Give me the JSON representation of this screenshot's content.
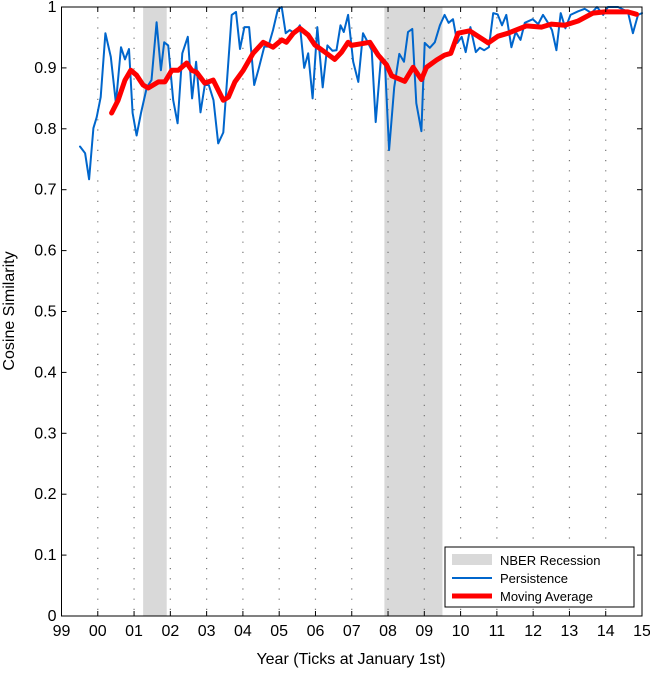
{
  "chart_data": {
    "type": "line",
    "title": "",
    "xlabel": "Year (Ticks at January 1st)",
    "ylabel": "Cosine Similarity",
    "xlim": [
      1999,
      2015
    ],
    "ylim": [
      0,
      1
    ],
    "x_ticks": [
      1999,
      2000,
      2001,
      2002,
      2003,
      2004,
      2005,
      2006,
      2007,
      2008,
      2009,
      2010,
      2011,
      2012,
      2013,
      2014,
      2015
    ],
    "x_tick_labels": [
      "99",
      "00",
      "01",
      "02",
      "03",
      "04",
      "05",
      "06",
      "07",
      "08",
      "09",
      "10",
      "11",
      "12",
      "13",
      "14",
      "15"
    ],
    "y_ticks": [
      0,
      0.1,
      0.2,
      0.3,
      0.4,
      0.5,
      0.6,
      0.7,
      0.8,
      0.9,
      1
    ],
    "y_tick_labels": [
      "0",
      "0.1",
      "0.2",
      "0.3",
      "0.4",
      "0.5",
      "0.6",
      "0.7",
      "0.8",
      "0.9",
      "1"
    ],
    "grid": "vertical dotted at year ticks",
    "legend_position": "bottom-right",
    "recessions": {
      "name": "NBER Recession",
      "color": "#d9d9d9",
      "periods": [
        [
          2001.25,
          2001.9
        ],
        [
          2007.9,
          2009.5
        ]
      ]
    },
    "series": [
      {
        "name": "Persistence",
        "color": "#0066cc",
        "x": [
          1999.51,
          1999.65,
          1999.76,
          1999.88,
          1999.97,
          2000.08,
          2000.21,
          2000.36,
          2000.5,
          2000.64,
          2000.75,
          2000.86,
          2000.96,
          2001.07,
          2001.19,
          2001.35,
          2001.48,
          2001.62,
          2001.74,
          2001.83,
          2001.94,
          2002.08,
          2002.2,
          2002.33,
          2002.48,
          2002.6,
          2002.71,
          2002.83,
          2002.95,
          2003.06,
          2003.19,
          2003.32,
          2003.46,
          2003.69,
          2003.81,
          2003.92,
          2004.04,
          2004.17,
          2004.31,
          2004.44,
          2004.59,
          2004.7,
          2004.83,
          2004.96,
          2005.07,
          2005.18,
          2005.29,
          2005.43,
          2005.57,
          2005.69,
          2005.8,
          2005.92,
          2006.05,
          2006.2,
          2006.33,
          2006.47,
          2006.58,
          2006.69,
          2006.78,
          2006.9,
          2007.04,
          2007.18,
          2007.31,
          2007.45,
          2007.55,
          2007.66,
          2007.8,
          2007.91,
          2008.03,
          2008.17,
          2008.31,
          2008.44,
          2008.55,
          2008.67,
          2008.78,
          2008.92,
          2009.01,
          2009.15,
          2009.29,
          2009.43,
          2009.56,
          2009.67,
          2009.79,
          2009.91,
          2010.03,
          2010.14,
          2010.27,
          2010.42,
          2010.53,
          2010.65,
          2010.78,
          2010.9,
          2011.02,
          2011.14,
          2011.26,
          2011.4,
          2011.52,
          2011.65,
          2011.77,
          2011.99,
          2012.14,
          2012.27,
          2012.41,
          2012.52,
          2012.64,
          2012.76,
          2012.89,
          2013.03,
          2013.24,
          2013.42,
          2013.61,
          2013.76,
          2013.93,
          2014.06,
          2014.34,
          2014.61,
          2014.75,
          2014.89,
          2015.0
        ],
        "y": [
          0.771,
          0.76,
          0.717,
          0.801,
          0.819,
          0.852,
          0.957,
          0.918,
          0.842,
          0.934,
          0.914,
          0.931,
          0.826,
          0.789,
          0.826,
          0.868,
          0.88,
          0.975,
          0.896,
          0.942,
          0.937,
          0.847,
          0.809,
          0.924,
          0.951,
          0.85,
          0.91,
          0.827,
          0.872,
          0.872,
          0.847,
          0.776,
          0.794,
          0.987,
          0.992,
          0.931,
          0.967,
          0.967,
          0.872,
          0.9,
          0.935,
          0.935,
          0.962,
          0.995,
          1.0,
          0.957,
          0.962,
          0.957,
          0.97,
          0.9,
          0.924,
          0.85,
          0.967,
          0.868,
          0.937,
          0.928,
          0.929,
          0.97,
          0.959,
          0.987,
          0.91,
          0.877,
          0.957,
          0.941,
          0.929,
          0.811,
          0.913,
          0.913,
          0.765,
          0.868,
          0.923,
          0.91,
          0.959,
          0.964,
          0.842,
          0.796,
          0.941,
          0.933,
          0.942,
          0.97,
          0.987,
          0.974,
          0.98,
          0.941,
          0.951,
          0.926,
          0.967,
          0.926,
          0.933,
          0.929,
          0.934,
          0.99,
          0.988,
          0.97,
          0.987,
          0.934,
          0.959,
          0.946,
          0.974,
          0.98,
          0.972,
          0.987,
          0.974,
          0.962,
          0.929,
          0.99,
          0.965,
          0.987,
          0.993,
          0.997,
          0.99,
          1.0,
          0.987,
          1.0,
          1.0,
          0.992,
          0.957,
          0.987,
          0.99
        ]
      },
      {
        "name": "Moving Average",
        "color": "#ff0000",
        "x": [
          2000.38,
          2000.56,
          2000.75,
          2000.91,
          2001.07,
          2001.25,
          2001.39,
          2001.67,
          2001.85,
          2002.04,
          2002.22,
          2002.45,
          2002.59,
          2002.72,
          2002.95,
          2003.18,
          2003.46,
          2003.6,
          2003.78,
          2004.01,
          2004.28,
          2004.56,
          2004.83,
          2005.07,
          2005.2,
          2005.39,
          2005.57,
          2005.8,
          2005.98,
          2006.26,
          2006.53,
          2006.72,
          2006.9,
          2006.99,
          2007.5,
          2007.73,
          2007.96,
          2008.1,
          2008.46,
          2008.69,
          2008.92,
          2009.06,
          2009.34,
          2009.56,
          2009.73,
          2009.93,
          2010.25,
          2010.76,
          2011.03,
          2011.31,
          2011.81,
          2012.23,
          2012.5,
          2012.87,
          2013.24,
          2013.65,
          2013.97,
          2014.61,
          2014.85
        ],
        "y": [
          0.826,
          0.847,
          0.88,
          0.896,
          0.888,
          0.872,
          0.867,
          0.877,
          0.877,
          0.896,
          0.896,
          0.908,
          0.896,
          0.893,
          0.875,
          0.88,
          0.847,
          0.852,
          0.877,
          0.896,
          0.924,
          0.942,
          0.934,
          0.946,
          0.942,
          0.957,
          0.965,
          0.954,
          0.938,
          0.926,
          0.914,
          0.926,
          0.942,
          0.937,
          0.942,
          0.921,
          0.905,
          0.887,
          0.878,
          0.901,
          0.881,
          0.901,
          0.913,
          0.921,
          0.924,
          0.957,
          0.961,
          0.941,
          0.952,
          0.957,
          0.969,
          0.967,
          0.972,
          0.97,
          0.977,
          0.99,
          0.992,
          0.992,
          0.988
        ]
      }
    ],
    "legend": [
      "NBER Recession",
      "Persistence",
      "Moving Average"
    ]
  }
}
